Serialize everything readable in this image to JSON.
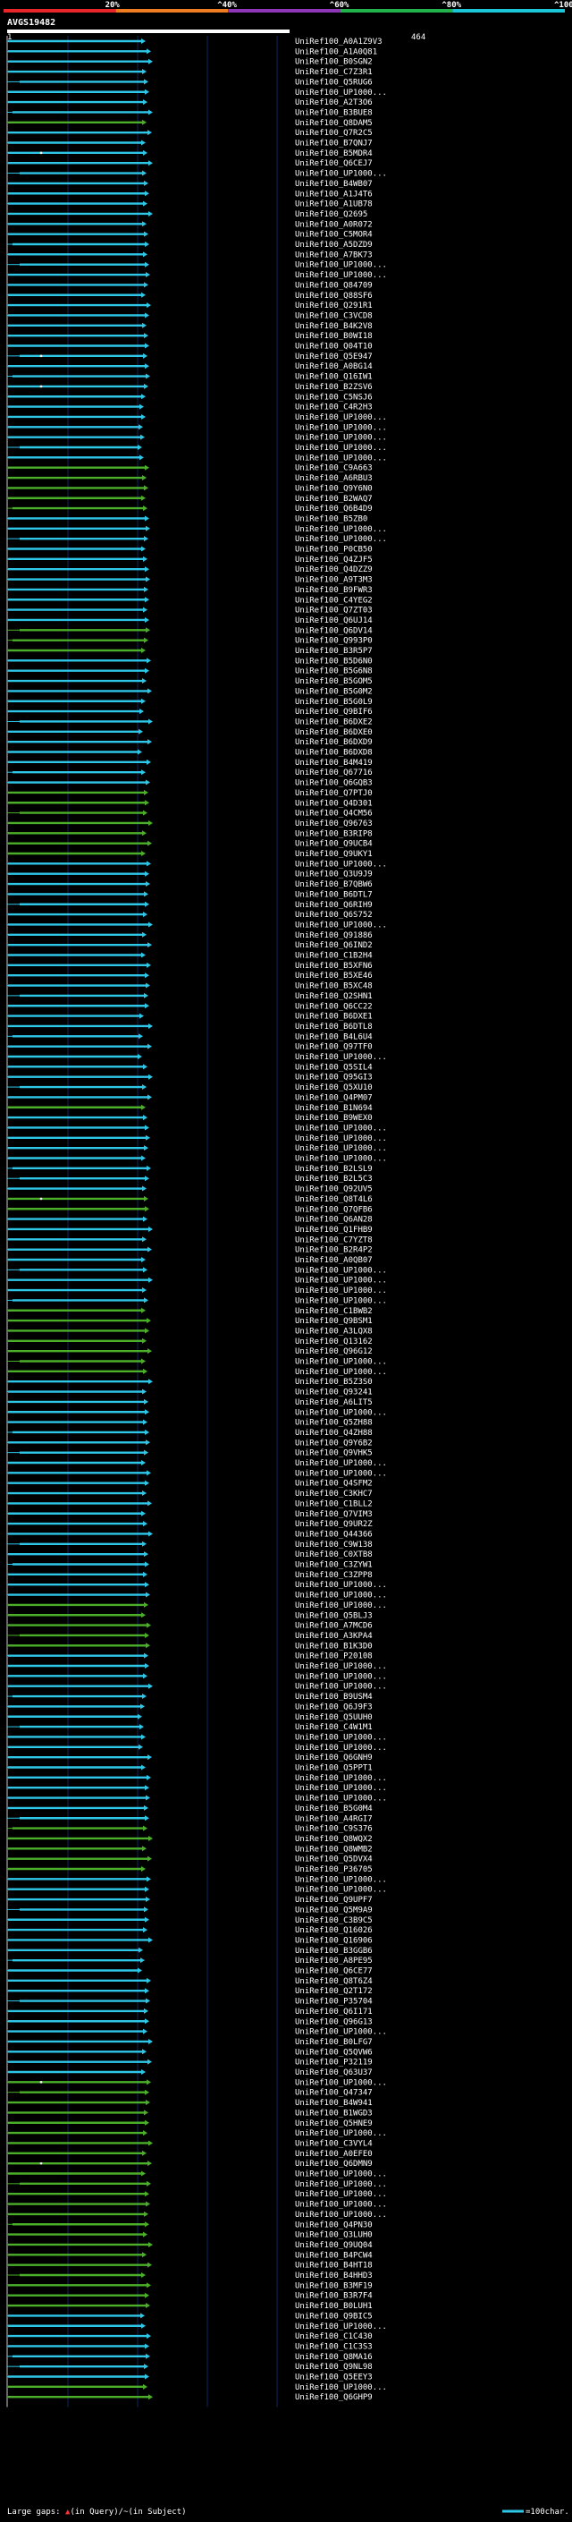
{
  "chart_data": {
    "type": "alignment-overview",
    "query_id": "AVGS19482",
    "query_start": "1",
    "query_end": "464",
    "scale_labels": [
      "20%",
      "^40%",
      "^60%",
      "^80%",
      "^100%"
    ],
    "scale_colors": [
      "#e8262a",
      "#f07c22",
      "#8e35b8",
      "#22b24c",
      "#19c5d6"
    ],
    "row_colors": {
      "cyan": "#2fc7e8",
      "green": "#4caf2a"
    },
    "legend": {
      "gaps_label": "Large gaps: ",
      "gaps_query": "(in Query)/",
      "gaps_subject": "(in Subject)",
      "scale_label": "=100char."
    },
    "rows": [
      [
        "UniRef100_A0A1Z9V3",
        1,
        "c",
        0
      ],
      [
        "UniRef100_A1A0Q81",
        2,
        "c",
        0
      ],
      [
        "UniRef100_B0SGN2",
        2,
        "c",
        0
      ],
      [
        "UniRef100_C7Z3R1",
        1,
        "c",
        0
      ],
      [
        "UniRef100_Q5RUG6",
        1,
        "c",
        0
      ],
      [
        "UniRef100_UP1000...",
        2,
        "c",
        0
      ],
      [
        "UniRef100_A2T3O6",
        1,
        "c",
        0
      ],
      [
        "UniRef100_B3BUE8",
        2,
        "c",
        0
      ],
      [
        "UniRef100_Q8DAM5",
        1,
        "g",
        0
      ],
      [
        "UniRef100_Q7R2C5",
        2,
        "c",
        0
      ],
      [
        "UniRef100_B7QNJ7",
        1,
        "c",
        0
      ],
      [
        "UniRef100_B5MDR4",
        1,
        "c",
        1
      ],
      [
        "UniRef100_Q6CEJ7",
        2,
        "c",
        0
      ],
      [
        "UniRef100_UP1000...",
        1,
        "c",
        0
      ],
      [
        "UniRef100_B4WB07",
        1,
        "c",
        0
      ],
      [
        "UniRef100_A1J4T6",
        2,
        "c",
        0
      ],
      [
        "UniRef100_A1UB78",
        1,
        "c",
        0
      ],
      [
        "UniRef100_Q2695",
        2,
        "c",
        0
      ],
      [
        "UniRef100_A0R072",
        1,
        "c",
        0
      ],
      [
        "UniRef100_C5MOR4",
        1,
        "c",
        0
      ],
      [
        "UniRef100_A5DZD9",
        2,
        "c",
        0
      ],
      [
        "UniRef100_A7BK73",
        1,
        "c",
        0
      ],
      [
        "UniRef100_UP1000...",
        1,
        "c",
        0
      ],
      [
        "UniRef100_UP1000...",
        2,
        "c",
        0
      ],
      [
        "UniRef100_Q84709",
        1,
        "c",
        0
      ],
      [
        "UniRef100_Q88SF6",
        1,
        "c",
        0
      ],
      [
        "UniRef100_Q291R1",
        2,
        "c",
        0
      ],
      [
        "UniRef100_C3VCD8",
        1,
        "c",
        0
      ],
      [
        "UniRef100_B4K2V8",
        1,
        "c",
        0
      ],
      [
        "UniRef100_B0WI18",
        1,
        "c",
        0
      ],
      [
        "UniRef100_Q04T10",
        2,
        "c",
        0
      ],
      [
        "UniRef100_Q5E947",
        1,
        "c",
        1
      ],
      [
        "UniRef100_A0BG14",
        1,
        "c",
        0
      ],
      [
        "UniRef100_Q16IW1",
        2,
        "c",
        0
      ],
      [
        "UniRef100_B2ZSV6",
        1,
        "c",
        1
      ],
      [
        "UniRef100_C5NSJ6",
        1,
        "c",
        0
      ],
      [
        "UniRef100_C4R2H3",
        3,
        "c",
        0
      ],
      [
        "UniRef100_UP1000...",
        3,
        "c",
        0
      ],
      [
        "UniRef100_UP1000...",
        3,
        "c",
        0
      ],
      [
        "UniRef100_UP1000...",
        3,
        "c",
        0
      ],
      [
        "UniRef100_UP1000...",
        3,
        "c",
        0
      ],
      [
        "UniRef100_UP1000...",
        3,
        "c",
        0
      ],
      [
        "UniRef100_C9A663",
        1,
        "g",
        0
      ],
      [
        "UniRef100_A6RBU3",
        1,
        "g",
        0
      ],
      [
        "UniRef100_Q9Y6N0",
        1,
        "g",
        0
      ],
      [
        "UniRef100_B2WAQ7",
        1,
        "g",
        0
      ],
      [
        "UniRef100_Q6B4D9",
        1,
        "g",
        0
      ],
      [
        "UniRef100_B5ZB0",
        1,
        "c",
        0
      ],
      [
        "UniRef100_UP1000...",
        2,
        "c",
        0
      ],
      [
        "UniRef100_UP1000...",
        1,
        "c",
        0
      ],
      [
        "UniRef100_P0CB50",
        1,
        "c",
        0
      ],
      [
        "UniRef100_Q4ZJF5",
        1,
        "c",
        0
      ],
      [
        "UniRef100_Q4DZZ9",
        1,
        "c",
        0
      ],
      [
        "UniRef100_A9T3M3",
        2,
        "c",
        0
      ],
      [
        "UniRef100_B9FWR3",
        1,
        "c",
        0
      ],
      [
        "UniRef100_C4YEG2",
        2,
        "c",
        0
      ],
      [
        "UniRef100_Q7ZT03",
        1,
        "c",
        0
      ],
      [
        "UniRef100_Q6UJ14",
        1,
        "c",
        0
      ],
      [
        "UniRef100_Q6DV14",
        2,
        "g",
        0
      ],
      [
        "UniRef100_Q993P0",
        1,
        "g",
        0
      ],
      [
        "UniRef100_B3R5P7",
        1,
        "g",
        0
      ],
      [
        "UniRef100_B5D6N0",
        2,
        "c",
        0
      ],
      [
        "UniRef100_B5G6N8",
        1,
        "c",
        0
      ],
      [
        "UniRef100_B5GOM5",
        1,
        "c",
        0
      ],
      [
        "UniRef100_B5G0M2",
        2,
        "c",
        0
      ],
      [
        "UniRef100_B5G0L9",
        1,
        "c",
        0
      ],
      [
        "UniRef100_Q9BIF6",
        3,
        "c",
        0
      ],
      [
        "UniRef100_B6DXE2",
        2,
        "c",
        0
      ],
      [
        "UniRef100_B6DXE0",
        3,
        "c",
        0
      ],
      [
        "UniRef100_B6DXD9",
        2,
        "c",
        0
      ],
      [
        "UniRef100_B6DXD8",
        3,
        "c",
        0
      ],
      [
        "UniRef100_B4M419",
        2,
        "c",
        0
      ],
      [
        "UniRef100_Q67716",
        3,
        "c",
        0
      ],
      [
        "UniRef100_Q6GQB3",
        2,
        "c",
        0
      ],
      [
        "UniRef100_Q7PTJ0",
        1,
        "g",
        0
      ],
      [
        "UniRef100_Q4D301",
        2,
        "g",
        0
      ],
      [
        "UniRef100_Q4CM56",
        1,
        "g",
        0
      ],
      [
        "UniRef100_Q96763",
        2,
        "g",
        0
      ],
      [
        "UniRef100_B3RIP8",
        1,
        "g",
        0
      ],
      [
        "UniRef100_Q9UCB4",
        2,
        "g",
        0
      ],
      [
        "UniRef100_Q9UKY1",
        1,
        "g",
        0
      ],
      [
        "UniRef100_UP1000...",
        2,
        "c",
        0
      ],
      [
        "UniRef100_Q3U9J9",
        1,
        "c",
        0
      ],
      [
        "UniRef100_B7QBW6",
        2,
        "c",
        0
      ],
      [
        "UniRef100_B6DTL7",
        1,
        "c",
        0
      ],
      [
        "UniRef100_Q6RIH9",
        2,
        "c",
        0
      ],
      [
        "UniRef100_Q6S752",
        1,
        "c",
        0
      ],
      [
        "UniRef100_UP1000...",
        2,
        "c",
        0
      ],
      [
        "UniRef100_Q91886",
        1,
        "c",
        0
      ],
      [
        "UniRef100_Q6IND2",
        2,
        "c",
        0
      ],
      [
        "UniRef100_C1B2H4",
        1,
        "c",
        0
      ],
      [
        "UniRef100_B5XFN6",
        2,
        "c",
        0
      ],
      [
        "UniRef100_B5XE46",
        1,
        "c",
        0
      ],
      [
        "UniRef100_B5XC48",
        2,
        "c",
        0
      ],
      [
        "UniRef100_Q2SHN1",
        1,
        "c",
        0
      ],
      [
        "UniRef100_Q6CC22",
        2,
        "c",
        0
      ],
      [
        "UniRef100_B6DXE1",
        3,
        "c",
        0
      ],
      [
        "UniRef100_B6DTL8",
        2,
        "c",
        0
      ],
      [
        "UniRef100_B4L6U4",
        3,
        "c",
        0
      ],
      [
        "UniRef100_Q97TF0",
        2,
        "c",
        0
      ],
      [
        "UniRef100_UP1000...",
        3,
        "c",
        0
      ],
      [
        "UniRef100_Q5SIL4",
        1,
        "c",
        0
      ],
      [
        "UniRef100_Q95GI3",
        2,
        "c",
        0
      ],
      [
        "UniRef100_Q5XU10",
        1,
        "c",
        0
      ],
      [
        "UniRef100_Q4PM07",
        2,
        "c",
        0
      ],
      [
        "UniRef100_B1N694",
        1,
        "g",
        0
      ],
      [
        "UniRef100_B9WEX0",
        1,
        "c",
        0
      ],
      [
        "UniRef100_UP1000...",
        1,
        "c",
        0
      ],
      [
        "UniRef100_UP1000...",
        2,
        "c",
        0
      ],
      [
        "UniRef100_UP1000...",
        1,
        "c",
        0
      ],
      [
        "UniRef100_UP1000...",
        1,
        "c",
        0
      ],
      [
        "UniRef100_B2LSL9",
        2,
        "c",
        0
      ],
      [
        "UniRef100_B2L5C3",
        1,
        "c",
        0
      ],
      [
        "UniRef100_Q92UV5",
        1,
        "c",
        0
      ],
      [
        "UniRef100_Q8T4L6",
        1,
        "g",
        1
      ],
      [
        "UniRef100_Q7QFB6",
        2,
        "g",
        0
      ],
      [
        "UniRef100_Q6AN28",
        1,
        "c",
        0
      ],
      [
        "UniRef100_Q1FHB9",
        2,
        "c",
        0
      ],
      [
        "UniRef100_C7YZT8",
        1,
        "c",
        0
      ],
      [
        "UniRef100_B2R4P2",
        2,
        "c",
        0
      ],
      [
        "UniRef100_A0QB07",
        1,
        "c",
        0
      ],
      [
        "UniRef100_UP1000...",
        1,
        "c",
        0
      ],
      [
        "UniRef100_UP1000...",
        2,
        "c",
        0
      ],
      [
        "UniRef100_UP1000...",
        1,
        "c",
        0
      ],
      [
        "UniRef100_UP1000...",
        1,
        "c",
        0
      ],
      [
        "UniRef100_C1BWB2",
        1,
        "g",
        0
      ],
      [
        "UniRef100_Q9BSM1",
        2,
        "g",
        0
      ],
      [
        "UniRef100_A3LQX8",
        1,
        "g",
        0
      ],
      [
        "UniRef100_Q13162",
        1,
        "g",
        0
      ],
      [
        "UniRef100_Q96G12",
        2,
        "g",
        0
      ],
      [
        "UniRef100_UP1000...",
        1,
        "g",
        0
      ],
      [
        "UniRef100_UP1000...",
        1,
        "g",
        0
      ],
      [
        "UniRef100_B5Z3S0",
        2,
        "c",
        0
      ],
      [
        "UniRef100_Q93241",
        1,
        "c",
        0
      ],
      [
        "UniRef100_A6LIT5",
        1,
        "c",
        0
      ],
      [
        "UniRef100_UP1000...",
        2,
        "c",
        0
      ],
      [
        "UniRef100_Q5ZH88",
        1,
        "c",
        0
      ],
      [
        "UniRef100_Q4ZH88",
        1,
        "c",
        0
      ],
      [
        "UniRef100_Q9Y6B2",
        2,
        "c",
        0
      ],
      [
        "UniRef100_Q9VHK5",
        1,
        "c",
        0
      ],
      [
        "UniRef100_UP1000...",
        1,
        "c",
        0
      ],
      [
        "UniRef100_UP1000...",
        2,
        "c",
        0
      ],
      [
        "UniRef100_Q4SFM2",
        1,
        "c",
        0
      ],
      [
        "UniRef100_C3KHC7",
        1,
        "c",
        0
      ],
      [
        "UniRef100_C1BLL2",
        2,
        "c",
        0
      ],
      [
        "UniRef100_Q7VIM3",
        1,
        "c",
        0
      ],
      [
        "UniRef100_Q9UR2Z",
        1,
        "c",
        0
      ],
      [
        "UniRef100_Q44366",
        2,
        "c",
        0
      ],
      [
        "UniRef100_C9W138",
        1,
        "c",
        0
      ],
      [
        "UniRef100_C0XTB8",
        1,
        "c",
        0
      ],
      [
        "UniRef100_C3ZYW1",
        2,
        "c",
        0
      ],
      [
        "UniRef100_C3ZPP8",
        1,
        "c",
        0
      ],
      [
        "UniRef100_UP1000...",
        1,
        "c",
        0
      ],
      [
        "UniRef100_UP1000...",
        2,
        "c",
        0
      ],
      [
        "UniRef100_UP1000...",
        1,
        "g",
        0
      ],
      [
        "UniRef100_Q5BLJ3",
        1,
        "g",
        0
      ],
      [
        "UniRef100_A7MCD6",
        2,
        "g",
        0
      ],
      [
        "UniRef100_A3KPA4",
        1,
        "g",
        0
      ],
      [
        "UniRef100_B1K3D0",
        2,
        "g",
        0
      ],
      [
        "UniRef100_P20108",
        1,
        "c",
        0
      ],
      [
        "UniRef100_UP1000...",
        2,
        "c",
        0
      ],
      [
        "UniRef100_UP1000...",
        1,
        "c",
        0
      ],
      [
        "UniRef100_UP1000...",
        2,
        "c",
        0
      ],
      [
        "UniRef100_B9USM4",
        1,
        "c",
        0
      ],
      [
        "UniRef100_Q6J9F3",
        3,
        "c",
        0
      ],
      [
        "UniRef100_Q5UUH0",
        3,
        "c",
        0
      ],
      [
        "UniRef100_C4W1M1",
        3,
        "c",
        0
      ],
      [
        "UniRef100_UP1000...",
        3,
        "c",
        0
      ],
      [
        "UniRef100_UP1000...",
        3,
        "c",
        0
      ],
      [
        "UniRef100_Q6GNH9",
        2,
        "c",
        0
      ],
      [
        "UniRef100_Q5PPT1",
        1,
        "c",
        0
      ],
      [
        "UniRef100_UP1000...",
        2,
        "c",
        0
      ],
      [
        "UniRef100_UP1000...",
        1,
        "c",
        0
      ],
      [
        "UniRef100_UP1000...",
        2,
        "c",
        0
      ],
      [
        "UniRef100_B5G0M4",
        1,
        "c",
        0
      ],
      [
        "UniRef100_A4RGI7",
        2,
        "c",
        0
      ],
      [
        "UniRef100_C9S376",
        1,
        "g",
        0
      ],
      [
        "UniRef100_Q8WQX2",
        2,
        "g",
        0
      ],
      [
        "UniRef100_Q8WMB2",
        1,
        "g",
        0
      ],
      [
        "UniRef100_Q5DVX4",
        2,
        "g",
        0
      ],
      [
        "UniRef100_P36705",
        1,
        "g",
        0
      ],
      [
        "UniRef100_UP1000...",
        2,
        "c",
        0
      ],
      [
        "UniRef100_UP1000...",
        1,
        "c",
        0
      ],
      [
        "UniRef100_Q9UPF7",
        2,
        "c",
        0
      ],
      [
        "UniRef100_Q5M9A9",
        1,
        "c",
        0
      ],
      [
        "UniRef100_C3B9C5",
        2,
        "c",
        0
      ],
      [
        "UniRef100_Q16026",
        1,
        "c",
        0
      ],
      [
        "UniRef100_Q16906",
        2,
        "c",
        0
      ],
      [
        "UniRef100_B3GGB6",
        3,
        "c",
        0
      ],
      [
        "UniRef100_A8PE95",
        3,
        "c",
        0
      ],
      [
        "UniRef100_Q6CE77",
        3,
        "c",
        0
      ],
      [
        "UniRef100_Q8T6Z4",
        2,
        "c",
        0
      ],
      [
        "UniRef100_Q2T172",
        1,
        "c",
        0
      ],
      [
        "UniRef100_P35704",
        2,
        "c",
        0
      ],
      [
        "UniRef100_Q6I171",
        1,
        "c",
        0
      ],
      [
        "UniRef100_Q96G13",
        2,
        "c",
        0
      ],
      [
        "UniRef100_UP1000...",
        1,
        "c",
        0
      ],
      [
        "UniRef100_B0LFG7",
        2,
        "c",
        0
      ],
      [
        "UniRef100_Q5QVW6",
        1,
        "c",
        0
      ],
      [
        "UniRef100_P32119",
        2,
        "c",
        0
      ],
      [
        "UniRef100_Q63U37",
        1,
        "c",
        0
      ],
      [
        "UniRef100_UP1000...",
        2,
        "g",
        1
      ],
      [
        "UniRef100_Q47347",
        1,
        "g",
        0
      ],
      [
        "UniRef100_B4W941",
        2,
        "g",
        0
      ],
      [
        "UniRef100_B1WGD3",
        1,
        "g",
        0
      ],
      [
        "UniRef100_Q5HNE9",
        2,
        "g",
        0
      ],
      [
        "UniRef100_UP1000...",
        1,
        "g",
        0
      ],
      [
        "UniRef100_C3VYL4",
        2,
        "g",
        0
      ],
      [
        "UniRef100_A0EFE0",
        1,
        "g",
        0
      ],
      [
        "UniRef100_Q6DMN9",
        2,
        "g",
        1
      ],
      [
        "UniRef100_UP1000...",
        1,
        "g",
        0
      ],
      [
        "UniRef100_UP1000...",
        2,
        "g",
        0
      ],
      [
        "UniRef100_UP1000...",
        1,
        "g",
        0
      ],
      [
        "UniRef100_UP1000...",
        2,
        "g",
        0
      ],
      [
        "UniRef100_UP1000...",
        1,
        "g",
        0
      ],
      [
        "UniRef100_Q4PN30",
        2,
        "g",
        0
      ],
      [
        "UniRef100_Q3LUH0",
        1,
        "g",
        0
      ],
      [
        "UniRef100_Q9UQ04",
        2,
        "g",
        0
      ],
      [
        "UniRef100_B4PCW4",
        1,
        "g",
        0
      ],
      [
        "UniRef100_B4HT18",
        2,
        "g",
        0
      ],
      [
        "UniRef100_B4HHD3",
        1,
        "g",
        0
      ],
      [
        "UniRef100_B3MF19",
        2,
        "g",
        0
      ],
      [
        "UniRef100_B3R7F4",
        1,
        "g",
        0
      ],
      [
        "UniRef100_B0LUH1",
        2,
        "g",
        0
      ],
      [
        "UniRef100_Q9BIC5",
        3,
        "c",
        0
      ],
      [
        "UniRef100_UP1000...",
        1,
        "c",
        0
      ],
      [
        "UniRef100_C1C430",
        2,
        "c",
        0
      ],
      [
        "UniRef100_C1C3S3",
        1,
        "c",
        0
      ],
      [
        "UniRef100_Q8MA16",
        2,
        "c",
        0
      ],
      [
        "UniRef100_Q9NL98",
        1,
        "c",
        0
      ],
      [
        "UniRef100_Q5EEY3",
        2,
        "c",
        0
      ],
      [
        "UniRef100_UP1000...",
        1,
        "g",
        0
      ],
      [
        "UniRef100_Q6GHP9",
        2,
        "g",
        0
      ]
    ]
  }
}
